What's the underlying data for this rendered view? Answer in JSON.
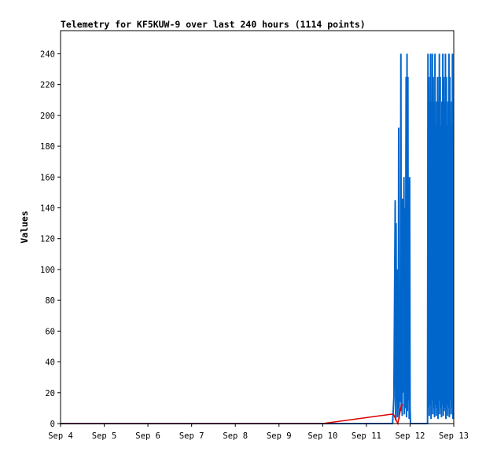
{
  "chart_data": {
    "type": "line",
    "title": "Telemetry for KF5KUW-9 over last 240 hours (1114 points)",
    "xlabel": "",
    "ylabel": "Values",
    "x_ticks": [
      "Sep 4",
      "Sep 5",
      "Sep 6",
      "Sep 7",
      "Sep 8",
      "Sep 9",
      "Sep 10",
      "Sep 11",
      "Sep 12",
      "Sep 13"
    ],
    "y_ticks": [
      0,
      20,
      40,
      60,
      80,
      100,
      120,
      140,
      160,
      180,
      200,
      220,
      240
    ],
    "xlim": [
      0,
      9
    ],
    "ylim": [
      0,
      255
    ],
    "grid": false,
    "legend": "none",
    "colors": {
      "blue_series": "#0066cc",
      "red_series": "#dd0000",
      "frame": "#000000"
    },
    "series": [
      {
        "color": "blue",
        "x": [
          0,
          6.0,
          7.6,
          7.63,
          7.66,
          7.67,
          7.68,
          7.69,
          7.7,
          7.71,
          7.72,
          7.73,
          7.74,
          7.75,
          7.76,
          7.77,
          7.78,
          7.79,
          7.8,
          7.81,
          7.82,
          7.83,
          7.84,
          7.85,
          7.86,
          7.87,
          7.88,
          7.89,
          7.9,
          7.91,
          7.92,
          7.93,
          7.94,
          7.95,
          7.96,
          7.97,
          7.98,
          7.99,
          8.0,
          8.01,
          8.02,
          8.3,
          8.4,
          8.41,
          8.42,
          8.43,
          8.44,
          8.45,
          8.46,
          8.47,
          8.48,
          8.49,
          8.5,
          8.51,
          8.52,
          8.53,
          8.54,
          8.55,
          8.56,
          8.57,
          8.58,
          8.59,
          8.6,
          8.61,
          8.62,
          8.63,
          8.64,
          8.65,
          8.66,
          8.67,
          8.68,
          8.69,
          8.7,
          8.71,
          8.72,
          8.73,
          8.74,
          8.75,
          8.76,
          8.77,
          8.78,
          8.79,
          8.8,
          8.81,
          8.82,
          8.83,
          8.84,
          8.85,
          8.86,
          8.87,
          8.88,
          8.89,
          8.9,
          8.91,
          8.92,
          8.93,
          8.94,
          8.95,
          8.96,
          8.97,
          8.98,
          8.99
        ],
        "y": [
          0,
          0,
          0,
          17,
          145,
          2,
          130,
          15,
          100,
          4,
          72,
          10,
          192,
          3,
          60,
          14,
          50,
          240,
          8,
          120,
          5,
          146,
          20,
          93,
          160,
          6,
          140,
          10,
          110,
          225,
          4,
          240,
          8,
          225,
          15,
          112,
          3,
          160,
          10,
          0,
          0,
          0,
          0,
          240,
          10,
          225,
          5,
          209,
          12,
          240,
          3,
          209,
          15,
          240,
          6,
          225,
          10,
          209,
          4,
          240,
          12,
          193,
          5,
          209,
          10,
          225,
          3,
          209,
          15,
          240,
          6,
          225,
          10,
          193,
          4,
          209,
          12,
          240,
          5,
          225,
          8,
          209,
          10,
          240,
          3,
          225,
          12,
          193,
          5,
          209,
          10,
          240,
          4,
          225,
          15,
          193,
          6,
          209,
          10,
          240,
          3,
          177
        ]
      },
      {
        "color": "red",
        "x": [
          0,
          6.0,
          7.55,
          7.62,
          7.72,
          7.8,
          7.85
        ],
        "y": [
          0,
          0,
          6,
          6,
          0,
          12,
          12
        ]
      }
    ]
  }
}
